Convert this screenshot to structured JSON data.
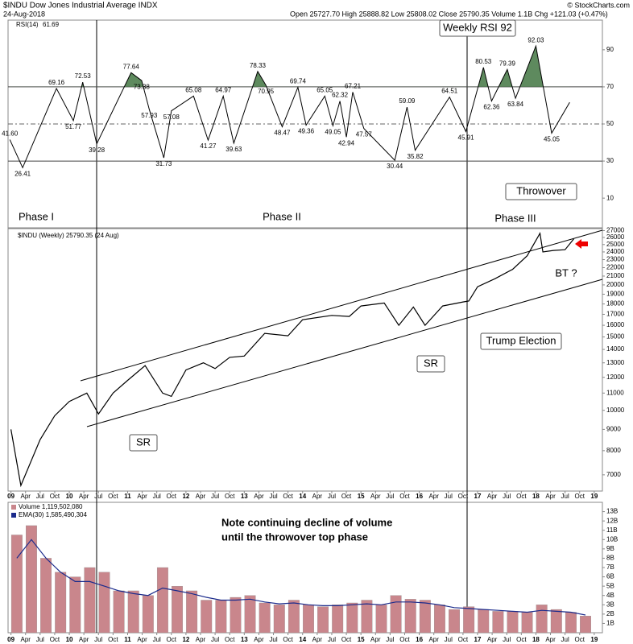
{
  "header": {
    "symbol_line": "$INDU Dow Jones Industrial Average INDX",
    "date": "24-Aug-2018",
    "quote": "Open 25727.70  High 25888.82  Low 25808.02  Close 25790.35  Volume 1.1B  Chg +121.03 (+0.47%)",
    "credit": "© StockCharts.com"
  },
  "chart_data": [
    {
      "type": "line",
      "legend": "RSI(14)",
      "color": "#000000",
      "fill_color": "#5e8a5e",
      "x": [
        2008.98,
        2009.2,
        2009.78,
        2010.07,
        2010.23,
        2010.47,
        2011.06,
        2011.24,
        2011.37,
        2011.62,
        2011.75,
        2012.13,
        2012.38,
        2012.64,
        2012.82,
        2013.23,
        2013.37,
        2013.65,
        2013.92,
        2014.06,
        2014.38,
        2014.52,
        2014.64,
        2014.75,
        2014.86,
        2015.05,
        2015.58,
        2015.79,
        2015.93,
        2016.52,
        2016.8,
        2017.1,
        2017.24,
        2017.51,
        2017.65,
        2018.0,
        2018.27,
        2018.58
      ],
      "values": [
        41.6,
        26.41,
        69.16,
        51.77,
        72.53,
        39.28,
        77.64,
        73.38,
        57.93,
        31.73,
        57.08,
        65.08,
        41.27,
        64.97,
        39.63,
        78.33,
        70.95,
        48.47,
        69.74,
        49.36,
        65.05,
        49.05,
        62.32,
        42.94,
        67.21,
        47.57,
        30.44,
        59.09,
        35.82,
        64.51,
        45.91,
        80.53,
        62.36,
        79.39,
        63.84,
        92.03,
        45.05,
        61.69
      ],
      "value_labels": [
        "41.60",
        "26.41",
        "69.16",
        "51.77",
        "72.53",
        "39.28",
        "77.64",
        "73.38",
        "57.93",
        "31.73",
        "57.08",
        "65.08",
        "41.27",
        "64.97",
        "39.63",
        "78.33",
        "70.95",
        "48.47",
        "69.74",
        "49.36",
        "65.05",
        "49.05",
        "62.32",
        "42.94",
        "67.21",
        "47.57",
        "30.44",
        "59.09",
        "35.82",
        "64.51",
        "45.91",
        "80.53",
        "62.36",
        "79.39",
        "63.84",
        "92.03",
        "45.05",
        "61.69"
      ],
      "xlim": [
        2008.95,
        2019.14
      ],
      "ylim": [
        -6,
        106
      ],
      "yticks": [
        10,
        30,
        50,
        70,
        90
      ],
      "ref_lines": [
        30,
        70
      ],
      "dashed_line": 50,
      "fill_above": 70,
      "annotations": [
        "Weekly RSI 92"
      ]
    },
    {
      "type": "line",
      "legend": "$INDU (Weekly) 25790.35 (24 Aug)",
      "color": "#000000",
      "log_scale": true,
      "x": [
        2009.0,
        2009.17,
        2009.5,
        2009.75,
        2010.0,
        2010.3,
        2010.5,
        2010.75,
        2011.0,
        2011.3,
        2011.6,
        2011.75,
        2012.0,
        2012.3,
        2012.5,
        2012.75,
        2013.0,
        2013.35,
        2013.75,
        2014.0,
        2014.5,
        2014.8,
        2015.0,
        2015.4,
        2015.65,
        2015.9,
        2016.1,
        2016.4,
        2016.75,
        2016.85,
        2017.0,
        2017.3,
        2017.6,
        2017.85,
        2018.07,
        2018.12,
        2018.3,
        2018.5,
        2018.65
      ],
      "values": [
        9000,
        6600,
        8500,
        9700,
        10500,
        11000,
        9800,
        11000,
        11800,
        12800,
        11000,
        10800,
        12500,
        13000,
        12600,
        13400,
        13500,
        15300,
        15100,
        16500,
        16900,
        16800,
        17800,
        18100,
        16000,
        17700,
        16000,
        17800,
        18200,
        18300,
        19800,
        20700,
        21800,
        23500,
        26600,
        24000,
        24200,
        24300,
        25790.35
      ],
      "xlim": [
        2008.95,
        2019.14
      ],
      "ylim": [
        6400,
        27300
      ],
      "yticks": [
        7000,
        8000,
        9000,
        10000,
        11000,
        12000,
        13000,
        14000,
        15000,
        16000,
        17000,
        18000,
        19000,
        20000,
        21000,
        22000,
        23000,
        24000,
        25000,
        26000,
        27000
      ],
      "xticks": [
        {
          "value": 2009,
          "label": "09"
        },
        {
          "value": 2009.25,
          "label": "Apr"
        },
        {
          "value": 2009.5,
          "label": "Jul"
        },
        {
          "value": 2009.75,
          "label": "Oct"
        },
        {
          "value": 2010,
          "label": "10"
        },
        {
          "value": 2010.25,
          "label": "Apr"
        },
        {
          "value": 2010.5,
          "label": "Jul"
        },
        {
          "value": 2010.75,
          "label": "Oct"
        },
        {
          "value": 2011,
          "label": "11"
        },
        {
          "value": 2011.25,
          "label": "Apr"
        },
        {
          "value": 2011.5,
          "label": "Jul"
        },
        {
          "value": 2011.75,
          "label": "Oct"
        },
        {
          "value": 2012,
          "label": "12"
        },
        {
          "value": 2012.25,
          "label": "Apr"
        },
        {
          "value": 2012.5,
          "label": "Jul"
        },
        {
          "value": 2012.75,
          "label": "Oct"
        },
        {
          "value": 2013,
          "label": "13"
        },
        {
          "value": 2013.25,
          "label": "Apr"
        },
        {
          "value": 2013.5,
          "label": "Jul"
        },
        {
          "value": 2013.75,
          "label": "Oct"
        },
        {
          "value": 2014,
          "label": "14"
        },
        {
          "value": 2014.25,
          "label": "Apr"
        },
        {
          "value": 2014.5,
          "label": "Jul"
        },
        {
          "value": 2014.75,
          "label": "Oct"
        },
        {
          "value": 2015,
          "label": "15"
        },
        {
          "value": 2015.25,
          "label": "Apr"
        },
        {
          "value": 2015.5,
          "label": "Jul"
        },
        {
          "value": 2015.75,
          "label": "Oct"
        },
        {
          "value": 2016,
          "label": "16"
        },
        {
          "value": 2016.25,
          "label": "Apr"
        },
        {
          "value": 2016.5,
          "label": "Jul"
        },
        {
          "value": 2016.75,
          "label": "Oct"
        },
        {
          "value": 2017,
          "label": "17"
        },
        {
          "value": 2017.25,
          "label": "Apr"
        },
        {
          "value": 2017.5,
          "label": "Jul"
        },
        {
          "value": 2017.75,
          "label": "Oct"
        },
        {
          "value": 2018,
          "label": "18"
        },
        {
          "value": 2018.25,
          "label": "Apr"
        },
        {
          "value": 2018.5,
          "label": "Jul"
        },
        {
          "value": 2018.75,
          "label": "Oct"
        },
        {
          "value": 2019,
          "label": "19"
        }
      ],
      "annotations": [
        "Phase I",
        "Phase II",
        "Phase III",
        "Throwover",
        "BT ?",
        "Trump Election",
        "SR",
        "SR"
      ]
    },
    {
      "type": "bar",
      "xlim": [
        2008.95,
        2019.14
      ],
      "ylim": [
        0,
        14
      ],
      "yticks": [
        {
          "value": 1,
          "label": "1B"
        },
        {
          "value": 2,
          "label": "2B"
        },
        {
          "value": 3,
          "label": "3B"
        },
        {
          "value": 4,
          "label": "4B"
        },
        {
          "value": 5,
          "label": "5B"
        },
        {
          "value": 6,
          "label": "6B"
        },
        {
          "value": 7,
          "label": "7B"
        },
        {
          "value": 8,
          "label": "8B"
        },
        {
          "value": 9,
          "label": "9B"
        },
        {
          "value": 10,
          "label": "10B"
        },
        {
          "value": 11,
          "label": "11B"
        },
        {
          "value": 12,
          "label": "12B"
        },
        {
          "value": 13,
          "label": "13B"
        }
      ],
      "x": [
        2009.1,
        2009.35,
        2009.6,
        2009.85,
        2010.1,
        2010.35,
        2010.6,
        2010.85,
        2011.1,
        2011.35,
        2011.6,
        2011.85,
        2012.1,
        2012.35,
        2012.6,
        2012.85,
        2013.1,
        2013.35,
        2013.6,
        2013.85,
        2014.1,
        2014.35,
        2014.6,
        2014.85,
        2015.1,
        2015.35,
        2015.6,
        2015.85,
        2016.1,
        2016.35,
        2016.6,
        2016.85,
        2017.1,
        2017.35,
        2017.6,
        2017.85,
        2018.1,
        2018.35,
        2018.6,
        2018.85
      ],
      "series": [
        {
          "name": "Volume 1,119,502,080",
          "color": "#c9868c",
          "values": [
            10.5,
            11.5,
            8,
            6.5,
            6,
            7,
            6.5,
            4.5,
            4.5,
            4,
            7,
            5,
            4.5,
            3.5,
            3.5,
            3.8,
            4,
            3.2,
            3,
            3.5,
            3,
            2.8,
            3,
            3.2,
            3.5,
            3,
            4,
            3.6,
            3.5,
            3,
            2.5,
            2.8,
            2.5,
            2.3,
            2.3,
            2.2,
            3,
            2.5,
            2.2,
            1.8
          ]
        },
        {
          "name": "EMA(30) 1,585,490,304",
          "color": "#1b2b8c",
          "values": [
            8,
            10,
            8,
            6.5,
            5.5,
            5.5,
            5,
            4.5,
            4.2,
            4,
            4.8,
            4.5,
            4.2,
            3.8,
            3.5,
            3.5,
            3.6,
            3.3,
            3.1,
            3.2,
            3,
            2.9,
            2.9,
            3,
            3.1,
            3,
            3.3,
            3.3,
            3.2,
            3,
            2.7,
            2.6,
            2.5,
            2.4,
            2.3,
            2.2,
            2.4,
            2.3,
            2.2,
            1.9
          ]
        }
      ],
      "annotations": [
        "Note continuing decline of volume",
        "until the throwover top phase"
      ]
    }
  ]
}
